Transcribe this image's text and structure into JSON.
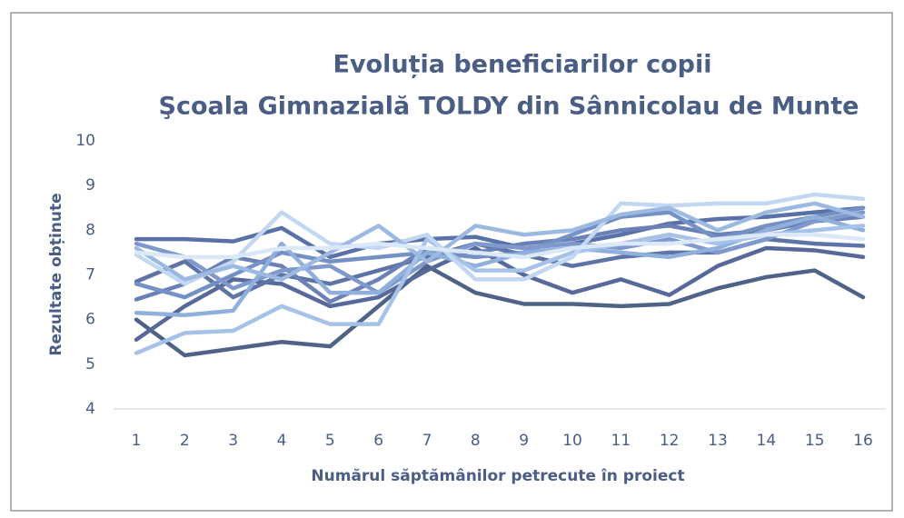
{
  "chart_data": {
    "type": "line",
    "title": "Evoluția beneficiarilor copii",
    "subtitle": "Şcoala Gimnazială TOLDY din Sânnicolau de Munte",
    "x_label": "Numărul săptămânilor petrecute în proiect",
    "y_label": "Rezultate obținute",
    "categories": [
      "1",
      "2",
      "3",
      "4",
      "5",
      "6",
      "7",
      "8",
      "9",
      "10",
      "11",
      "12",
      "13",
      "14",
      "15",
      "16"
    ],
    "ylim": [
      4,
      10
    ],
    "yticks": [
      4,
      5,
      6,
      7,
      8,
      9,
      10
    ],
    "series": [
      {
        "color": "#4f6288",
        "values": [
          6.0,
          5.2,
          5.35,
          5.5,
          5.4,
          6.3,
          7.2,
          6.6,
          6.35,
          6.35,
          6.3,
          6.35,
          6.7,
          6.95,
          7.1,
          6.5
        ]
      },
      {
        "color": "#56699a",
        "values": [
          5.55,
          6.3,
          6.9,
          6.8,
          6.3,
          6.5,
          7.1,
          7.6,
          7.0,
          6.6,
          6.9,
          6.55,
          7.2,
          7.6,
          7.55,
          7.4
        ]
      },
      {
        "color": "#5f74a6",
        "values": [
          6.85,
          7.3,
          6.5,
          7.0,
          6.8,
          7.1,
          7.4,
          7.7,
          7.45,
          7.2,
          7.4,
          7.5,
          7.5,
          7.8,
          7.7,
          7.65
        ]
      },
      {
        "color": "#5a70a8",
        "values": [
          7.8,
          7.8,
          7.75,
          8.05,
          7.4,
          7.7,
          7.8,
          7.85,
          7.6,
          7.7,
          7.9,
          8.15,
          8.25,
          8.3,
          8.4,
          8.5
        ]
      },
      {
        "color": "#6a80b6",
        "values": [
          6.45,
          6.8,
          7.4,
          7.2,
          6.4,
          6.9,
          7.6,
          7.5,
          7.7,
          7.8,
          8.0,
          8.1,
          7.9,
          8.0,
          8.2,
          8.3
        ]
      },
      {
        "color": "#7590c4",
        "values": [
          6.8,
          6.5,
          7.0,
          7.5,
          7.3,
          7.4,
          7.5,
          7.4,
          7.5,
          7.9,
          8.3,
          8.4,
          7.8,
          8.1,
          8.3,
          8.5
        ]
      },
      {
        "color": "#8099cc",
        "values": [
          7.7,
          7.4,
          6.7,
          7.1,
          7.2,
          6.6,
          7.3,
          7.7,
          7.6,
          7.7,
          7.6,
          7.8,
          7.5,
          7.8,
          8.2,
          8.4
        ]
      },
      {
        "color": "#8fb0dc",
        "values": [
          6.15,
          6.1,
          6.2,
          7.7,
          6.6,
          6.6,
          7.5,
          7.2,
          7.5,
          7.6,
          7.5,
          7.4,
          7.6,
          8.0,
          8.3,
          8.0
        ]
      },
      {
        "color": "#a6c2e8",
        "values": [
          5.25,
          5.7,
          5.75,
          6.3,
          5.9,
          5.9,
          7.8,
          7.1,
          7.1,
          7.5,
          7.7,
          7.9,
          7.7,
          7.9,
          8.0,
          8.1
        ]
      },
      {
        "color": "#c2d8f2",
        "values": [
          7.45,
          6.8,
          7.3,
          8.4,
          7.7,
          7.6,
          7.9,
          6.9,
          6.9,
          7.4,
          8.6,
          8.55,
          8.6,
          8.6,
          8.8,
          8.7
        ]
      },
      {
        "color": "#9cb9e2",
        "values": [
          7.6,
          6.9,
          7.2,
          6.9,
          7.5,
          8.1,
          7.3,
          8.1,
          7.9,
          8.0,
          8.35,
          8.5,
          8.0,
          8.4,
          8.6,
          8.3
        ]
      },
      {
        "color": "#dbe8f8",
        "values": [
          7.5,
          7.4,
          7.4,
          7.6,
          7.6,
          7.7,
          7.6,
          7.5,
          7.4,
          7.6,
          7.7,
          7.7,
          7.8,
          7.9,
          7.9,
          7.8
        ]
      }
    ]
  }
}
